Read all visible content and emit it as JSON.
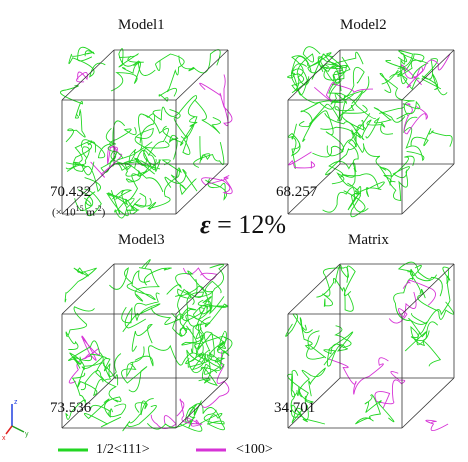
{
  "colors": {
    "burgers_111": "#22d622",
    "burgers_100": "#d633d6",
    "box_edge": "#333333",
    "axis_x": "#e02020",
    "axis_y": "#20a020",
    "axis_z": "#2040e0"
  },
  "panels": [
    {
      "title": "Model1",
      "density": "70.432"
    },
    {
      "title": "Model2",
      "density": "68.257"
    },
    {
      "title": "Model3",
      "density": "73.536"
    },
    {
      "title": "Matrix",
      "density": "34.701"
    }
  ],
  "unit_note": {
    "prefix": "(× 10",
    "exp": "15",
    "mid": " m",
    "exp2": "-2",
    "suffix": ")"
  },
  "strain": {
    "symbol": "ε",
    "text": " = 12%"
  },
  "legend": [
    {
      "label": "1/2<111>",
      "color_key": "burgers_111"
    },
    {
      "label": "<100>",
      "color_key": "burgers_100"
    }
  ],
  "axes": {
    "x": "x",
    "y": "y",
    "z": "z"
  }
}
